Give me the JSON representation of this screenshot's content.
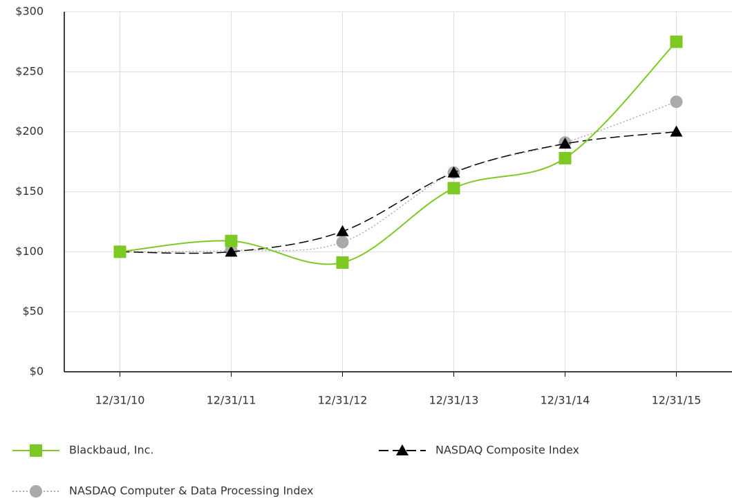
{
  "chart_data": {
    "type": "line",
    "categories": [
      "12/31/10",
      "12/31/11",
      "12/31/12",
      "12/31/13",
      "12/31/14",
      "12/31/15"
    ],
    "series": [
      {
        "name": "Blackbaud, Inc.",
        "color": "#7dc924",
        "line": "solid",
        "marker": "square",
        "values": [
          100,
          109,
          91,
          153,
          178,
          275
        ]
      },
      {
        "name": "NASDAQ Composite Index",
        "color": "#000000",
        "line": "dashed",
        "marker": "triangle",
        "values": [
          100,
          100,
          117,
          166,
          190,
          200
        ]
      },
      {
        "name": "NASDAQ Computer & Data Processing Index",
        "color": "#aaaaaa",
        "line": "dotted",
        "marker": "circle",
        "values": [
          100,
          101,
          108,
          166,
          191,
          225
        ]
      }
    ],
    "ylim": [
      0,
      300
    ],
    "yticks": [
      {
        "value": 0,
        "label": "$0"
      },
      {
        "value": 50,
        "label": "$50"
      },
      {
        "value": 100,
        "label": "$100"
      },
      {
        "value": 150,
        "label": "$150"
      },
      {
        "value": 200,
        "label": "$200"
      },
      {
        "value": 250,
        "label": "$250"
      },
      {
        "value": 300,
        "label": "$300"
      }
    ],
    "grid": true,
    "legend": "bottom"
  }
}
